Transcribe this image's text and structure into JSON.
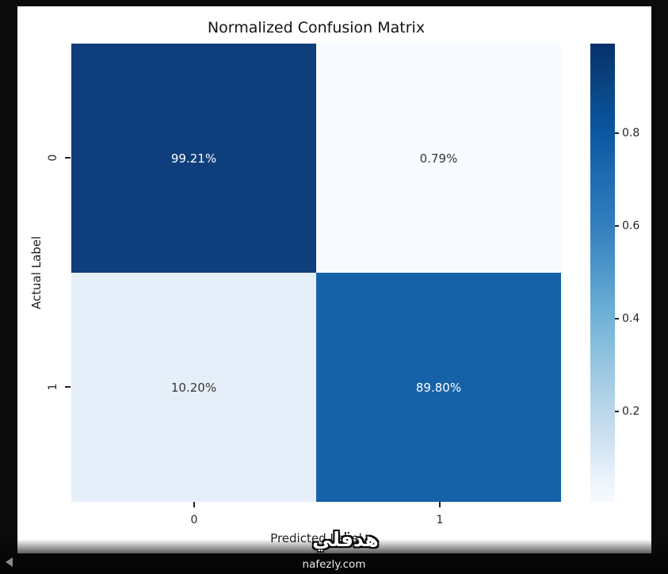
{
  "chart_data": {
    "type": "heatmap",
    "title": "Normalized Confusion Matrix",
    "xlabel": "Predicted Label",
    "ylabel": "Actual Label",
    "x_ticks": [
      "0",
      "1"
    ],
    "y_ticks": [
      "0",
      "1"
    ],
    "matrix_percent": [
      [
        99.21,
        0.79
      ],
      [
        10.2,
        89.8
      ]
    ],
    "cells": [
      {
        "row": 0,
        "col": 0,
        "label": "99.21%",
        "value": 0.9921,
        "bg": "#0e3e7c",
        "text_color": "#ffffff"
      },
      {
        "row": 0,
        "col": 1,
        "label": "0.79%",
        "value": 0.0079,
        "bg": "#f7fbff",
        "text_color": "#363636"
      },
      {
        "row": 1,
        "col": 0,
        "label": "10.20%",
        "value": 0.102,
        "bg": "#e5eff9",
        "text_color": "#363636"
      },
      {
        "row": 1,
        "col": 1,
        "label": "89.80%",
        "value": 0.898,
        "bg": "#1562a9",
        "text_color": "#ffffff"
      }
    ],
    "colorbar": {
      "colormap": "Blues",
      "position": "right",
      "ticks": [
        "0.8",
        "0.6",
        "0.4",
        "0.2"
      ],
      "tick_values": [
        0.8,
        0.6,
        0.4,
        0.2
      ]
    },
    "grid": false,
    "legend_position": "none"
  },
  "watermark": {
    "brand": "هدفلي",
    "site": "nafezly.com"
  },
  "colors": {
    "background": "#0b0b0b",
    "figure": "#ffffff",
    "title_text": "#141414",
    "axis_text": "#262626",
    "dark_cell": "#0e3e7c",
    "mid_cell": "#1562a9",
    "light_cell": "#f7fbff",
    "watermark_text": "#ffffff"
  }
}
